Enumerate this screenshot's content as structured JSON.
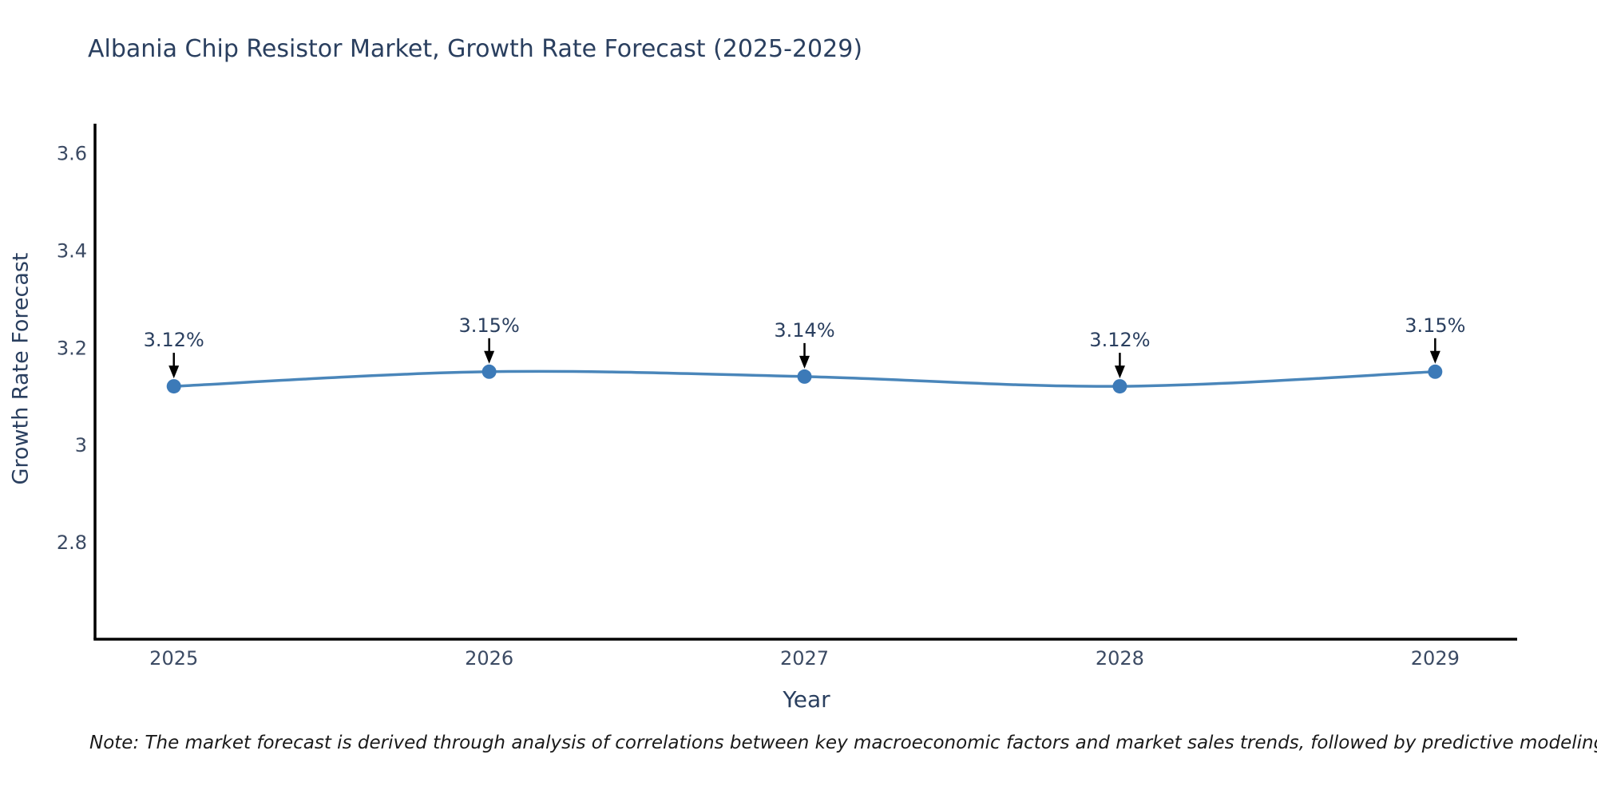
{
  "title": "Albania Chip Resistor Market, Growth Rate Forecast (2025-2029)",
  "note": "Note: The market forecast is derived through analysis of correlations between key macroeconomic factors and market sales trends, followed by predictive modeling to project future sales.",
  "chart_data": {
    "type": "line",
    "title": "Albania Chip Resistor Market, Growth Rate Forecast (2025-2029)",
    "xlabel": "Year",
    "ylabel": "Growth Rate Forecast",
    "x": [
      2025,
      2026,
      2027,
      2028,
      2029
    ],
    "series": [
      {
        "name": "Growth Rate Forecast",
        "values": [
          3.12,
          3.15,
          3.14,
          3.12,
          3.15
        ]
      }
    ],
    "point_labels": [
      "3.12%",
      "3.15%",
      "3.14%",
      "3.12%",
      "3.15%"
    ],
    "xtick_labels": [
      "2025",
      "2026",
      "2027",
      "2028",
      "2029"
    ],
    "xticks": [
      2025,
      2026,
      2027,
      2028,
      2029
    ],
    "ytick_labels": [
      "2.8",
      "3",
      "3.2",
      "3.4",
      "3.6"
    ],
    "yticks": [
      2.8,
      3.0,
      3.2,
      3.4,
      3.6
    ],
    "xlim": [
      2024.75,
      2029.26
    ],
    "ylim": [
      2.6,
      3.66
    ],
    "grid": false,
    "legend": false,
    "line_shape": "spline",
    "colors": {
      "line": "#4a86ba",
      "marker": "#3c7ab8",
      "axis_line": "#000000",
      "title_text": "#2a3f5f",
      "tick_text": "#3b4a63",
      "annotation_text": "#2a3f5f",
      "annotation_arrow": "#000000",
      "note_text": "#1a1a1a",
      "background": "#ffffff"
    }
  }
}
